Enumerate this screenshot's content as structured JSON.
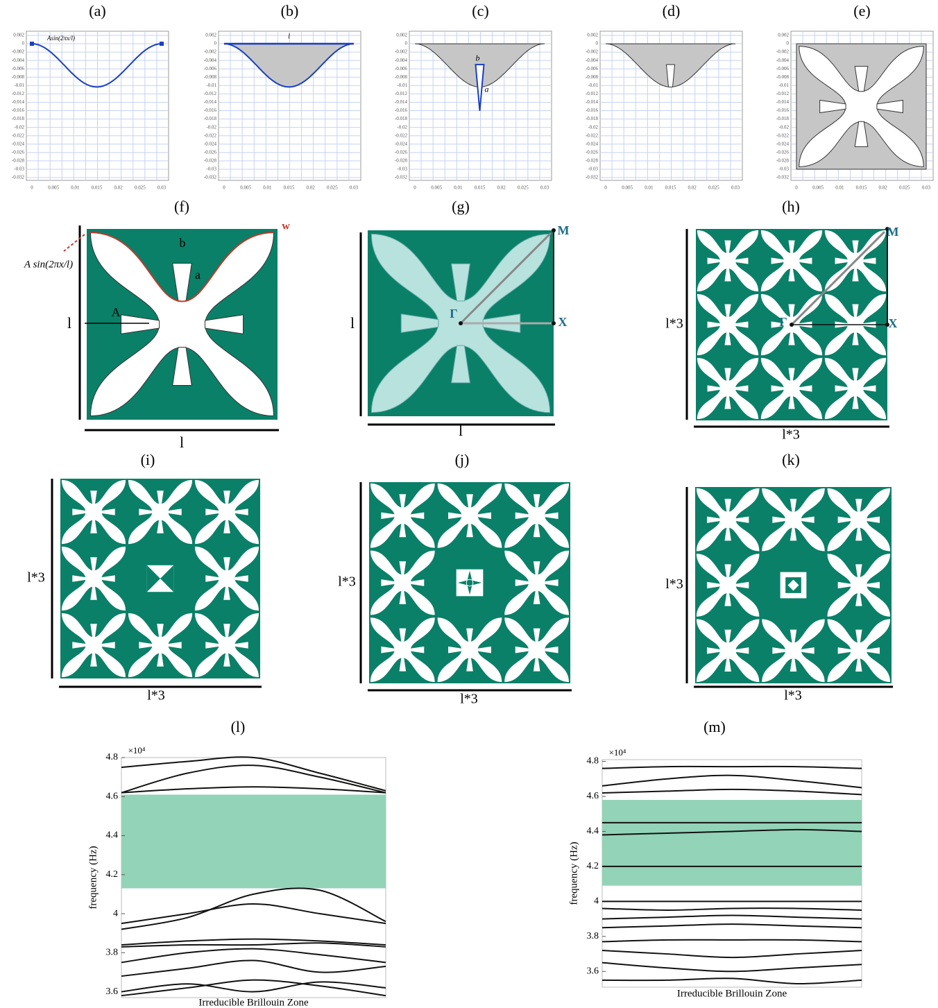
{
  "cad_panels": [
    {
      "label": "(a)",
      "yticks": [
        "0.002",
        "0",
        "-0.002",
        "-0.004",
        "-0.006",
        "-0.008",
        "-0.01",
        "-0.012",
        "-0.014",
        "-0.016",
        "-0.018",
        "-0.02",
        "-0.022",
        "-0.024",
        "-0.026",
        "-0.028",
        "-0.03",
        "-0.032"
      ],
      "xticks": [
        "0",
        "0.005",
        "0.01",
        "0.015",
        "0.02",
        "0.025",
        "0.03"
      ],
      "annotations": [
        "Asin(2πx/l)"
      ]
    },
    {
      "label": "(b)",
      "yticks": [
        "0.002",
        "0",
        "-0.002",
        "-0.004",
        "-0.006",
        "-0.008",
        "-0.01",
        "-0.012",
        "-0.014",
        "-0.016",
        "-0.018",
        "-0.02",
        "-0.022",
        "-0.024",
        "-0.026",
        "-0.028",
        "-0.03",
        "-0.032"
      ],
      "xticks": [
        "0",
        "0.005",
        "0.01",
        "0.015",
        "0.02",
        "0.025",
        "0.03"
      ],
      "annotations": [
        "l"
      ]
    },
    {
      "label": "(c)",
      "yticks": [
        "0.002",
        "0",
        "-0.002",
        "-0.004",
        "-0.006",
        "-0.008",
        "-0.01",
        "-0.012",
        "-0.014",
        "-0.016",
        "-0.018",
        "-0.02",
        "-0.022",
        "-0.024",
        "-0.026",
        "-0.028",
        "-0.03",
        "-0.032"
      ],
      "xticks": [
        "0",
        "0.005",
        "0.01",
        "0.015",
        "0.02",
        "0.025",
        "0.03"
      ],
      "annotations": [
        "b",
        "a"
      ]
    },
    {
      "label": "(d)",
      "yticks": [
        "0.002",
        "0",
        "-0.002",
        "-0.004",
        "-0.006",
        "-0.008",
        "-0.01",
        "-0.012",
        "-0.014",
        "-0.016",
        "-0.018",
        "-0.02",
        "-0.022",
        "-0.024",
        "-0.026",
        "-0.028",
        "-0.03",
        "-0.032"
      ],
      "xticks": [
        "0",
        "0.005",
        "0.01",
        "0.015",
        "0.02",
        "0.025",
        "0.03"
      ],
      "annotations": []
    },
    {
      "label": "(e)",
      "yticks": [
        "0.002",
        "0",
        "-0.002",
        "-0.004",
        "-0.006",
        "-0.008",
        "-0.01",
        "-0.012",
        "-0.014",
        "-0.016",
        "-0.018",
        "-0.02",
        "-0.022",
        "-0.024",
        "-0.026",
        "-0.028",
        "-0.03",
        "-0.032"
      ],
      "xticks": [
        "0",
        "0.005",
        "0.01",
        "0.015",
        "0.02",
        "0.025",
        "0.03"
      ],
      "annotations": []
    }
  ],
  "cell_panels": [
    {
      "label": "(f)",
      "width_label": "l",
      "height_label": "l",
      "annotations": [
        "w",
        "A sin(2πx/l)",
        "b",
        "a",
        "A"
      ]
    },
    {
      "label": "(g)",
      "width_label": "l",
      "height_label": "l",
      "points": [
        "Γ",
        "X",
        "M"
      ]
    },
    {
      "label": "(h)",
      "width_label": "l*3",
      "height_label": "l*3",
      "points": [
        "Γ",
        "X",
        "M"
      ]
    }
  ],
  "supercell_panels": [
    {
      "label": "(i)",
      "width_label": "l*3",
      "height_label": "l*3"
    },
    {
      "label": "(j)",
      "width_label": "l*3",
      "height_label": "l*3"
    },
    {
      "label": "(k)",
      "width_label": "l*3",
      "height_label": "l*3"
    }
  ],
  "band_structures": [
    {
      "type": "line",
      "label": "(l)",
      "y_label": "frequency (Hz)",
      "x_label": "Irreducible Brillouin Zone",
      "multiplier": "×10⁴",
      "ylim": [
        3.57,
        4.8
      ],
      "yticks": [
        3.6,
        3.8,
        4,
        4.2,
        4.4,
        4.6,
        4.8
      ],
      "band_gap": [
        4.13,
        4.61
      ],
      "band_gap_color": "#93d3b8",
      "line_color": "#111111",
      "series": [
        {
          "values": [
            4.62,
            4.64,
            4.65,
            4.64,
            4.62
          ]
        },
        {
          "values": [
            4.62,
            4.72,
            4.76,
            4.7,
            4.62
          ]
        },
        {
          "values": [
            4.75,
            4.78,
            4.8,
            4.72,
            4.63
          ]
        },
        {
          "values": [
            3.95,
            4.0,
            4.05,
            4.0,
            3.95
          ]
        },
        {
          "values": [
            3.92,
            3.98,
            4.1,
            4.12,
            3.96
          ]
        },
        {
          "values": [
            3.84,
            3.86,
            3.87,
            3.86,
            3.84
          ]
        },
        {
          "values": [
            3.83,
            3.84,
            3.84,
            3.85,
            3.83
          ]
        },
        {
          "values": [
            3.75,
            3.8,
            3.82,
            3.79,
            3.75
          ]
        },
        {
          "values": [
            3.68,
            3.72,
            3.76,
            3.7,
            3.73
          ]
        },
        {
          "values": [
            3.58,
            3.62,
            3.66,
            3.63,
            3.58
          ]
        },
        {
          "values": [
            3.6,
            3.64,
            3.6,
            3.65,
            3.62
          ]
        }
      ]
    },
    {
      "type": "line",
      "label": "(m)",
      "y_label": "frequency (Hz)",
      "x_label": "Irreducible Brillouin Zone",
      "multiplier": "×10⁴",
      "ylim": [
        3.51,
        4.81
      ],
      "yticks": [
        3.6,
        3.8,
        4,
        4.2,
        4.4,
        4.6,
        4.8
      ],
      "band_gap": [
        4.09,
        4.58
      ],
      "band_gap_color": "#93d3b8",
      "line_color": "#111111",
      "series": [
        {
          "values": [
            4.76,
            4.77,
            4.77,
            4.77,
            4.76
          ]
        },
        {
          "values": [
            4.66,
            4.7,
            4.72,
            4.69,
            4.65
          ]
        },
        {
          "values": [
            4.62,
            4.63,
            4.64,
            4.63,
            4.61
          ]
        },
        {
          "values": [
            4.45,
            4.45,
            4.45,
            4.45,
            4.45
          ]
        },
        {
          "values": [
            4.38,
            4.39,
            4.4,
            4.41,
            4.4
          ]
        },
        {
          "values": [
            4.2,
            4.2,
            4.2,
            4.2,
            4.2
          ]
        },
        {
          "values": [
            4.0,
            4.0,
            4.0,
            4.0,
            4.0
          ]
        },
        {
          "values": [
            3.96,
            3.95,
            3.96,
            3.96,
            3.95
          ]
        },
        {
          "values": [
            3.9,
            3.91,
            3.92,
            3.91,
            3.9
          ]
        },
        {
          "values": [
            3.85,
            3.86,
            3.87,
            3.86,
            3.85
          ]
        },
        {
          "values": [
            3.77,
            3.78,
            3.78,
            3.78,
            3.77
          ]
        },
        {
          "values": [
            3.72,
            3.7,
            3.68,
            3.7,
            3.72
          ]
        },
        {
          "values": [
            3.65,
            3.62,
            3.6,
            3.62,
            3.64
          ]
        },
        {
          "values": [
            3.55,
            3.55,
            3.56,
            3.53,
            3.55
          ]
        }
      ]
    }
  ]
}
